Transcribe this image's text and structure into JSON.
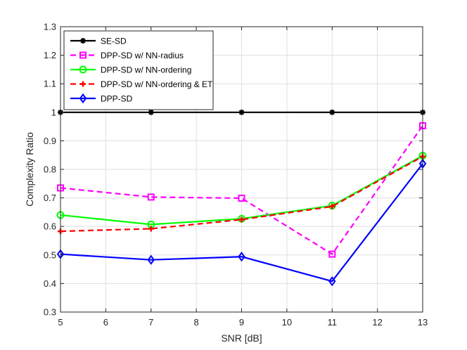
{
  "chart_data": {
    "type": "line",
    "title": "",
    "xlabel": "SNR [dB]",
    "ylabel": "Complexity Ratio",
    "xlim": [
      5,
      13
    ],
    "ylim": [
      0.3,
      1.3
    ],
    "xticks": [
      5,
      6,
      7,
      8,
      9,
      10,
      11,
      12,
      13
    ],
    "yticks": [
      0.3,
      0.4,
      0.5,
      0.6,
      0.7,
      0.8,
      0.9,
      1,
      1.1,
      1.2,
      1.3
    ],
    "grid": true,
    "legend_position": "top-left",
    "x": [
      5,
      7,
      9,
      11,
      13
    ],
    "series": [
      {
        "name": "SE-SD",
        "values": [
          1,
          1,
          1,
          1,
          1
        ],
        "color": "#000000",
        "dash": "solid",
        "marker": "asterisk"
      },
      {
        "name": "DPP-SD w/ NN-radius",
        "values": [
          0.735,
          0.703,
          0.699,
          0.503,
          0.953
        ],
        "color": "#ff00ff",
        "dash": "dashed",
        "marker": "square"
      },
      {
        "name": "DPP-SD w/ NN-ordering",
        "values": [
          0.64,
          0.607,
          0.627,
          0.673,
          0.848
        ],
        "color": "#00ff00",
        "dash": "solid",
        "marker": "circle"
      },
      {
        "name": "DPP-SD w/ NN-ordering & ET",
        "values": [
          0.583,
          0.592,
          0.624,
          0.67,
          0.845
        ],
        "color": "#ff0000",
        "dash": "dashed",
        "marker": "plus"
      },
      {
        "name": "DPP-SD",
        "values": [
          0.503,
          0.483,
          0.494,
          0.408,
          0.82
        ],
        "color": "#0000ff",
        "dash": "solid",
        "marker": "diamond"
      }
    ]
  }
}
